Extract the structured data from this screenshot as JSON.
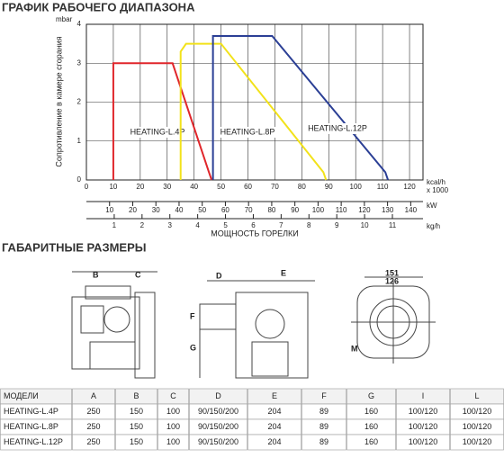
{
  "sections": {
    "chart_heading": "ГРАФИК РАБОЧЕГО ДИАПАЗОНА",
    "dims_heading": "ГАБАРИТНЫЕ РАЗМЕРЫ"
  },
  "chart_data": {
    "type": "line",
    "ylabel": "Сопротивление в камере сгорания",
    "xlabel": "МОЩНОСТЬ ГОРЕЛКИ",
    "yunit": "mbar",
    "xunit": "kcal/h",
    "xunit2": "x 1000",
    "x2unit": "kW",
    "x3unit": "kg/h",
    "xlim": [
      0,
      125
    ],
    "xticks": [
      0,
      10,
      20,
      30,
      40,
      50,
      60,
      70,
      80,
      90,
      100,
      110,
      120
    ],
    "ylim": [
      0,
      4
    ],
    "yticks": [
      0,
      1,
      2,
      3,
      4
    ],
    "x2lim": [
      0,
      145.3
    ],
    "x2ticks": [
      10,
      20,
      30,
      40,
      50,
      60,
      70,
      80,
      90,
      100,
      110,
      120,
      130,
      140
    ],
    "x3lim": [
      0,
      12.1
    ],
    "x3ticks": [
      1,
      2,
      3,
      4,
      5,
      6,
      7,
      8,
      9,
      10,
      11
    ],
    "grid": true,
    "series": [
      {
        "name": "HEATING-L.4P",
        "color": "#e0262b",
        "x": [
          10,
          10,
          32,
          45.5,
          46.5
        ],
        "values": [
          0,
          3,
          3,
          0.2,
          0
        ]
      },
      {
        "name": "HEATING-L.8P",
        "color": "#f2e21a",
        "x": [
          35,
          35,
          37,
          50,
          88,
          89
        ],
        "values": [
          0,
          3.3,
          3.5,
          3.5,
          0.2,
          0
        ]
      },
      {
        "name": "HEATING-L.12P",
        "color": "#2b3f95",
        "x": [
          47,
          47,
          69,
          111,
          112
        ],
        "values": [
          0,
          3.7,
          3.7,
          0.2,
          0
        ]
      }
    ]
  },
  "drawings": {
    "b": "B",
    "c": "C",
    "d": "D",
    "e": "E",
    "f": "F",
    "g": "G",
    "w1": "151",
    "w2": "126",
    "m": "M"
  },
  "table": {
    "header": [
      "МОДЕЛИ",
      "A",
      "B",
      "C",
      "D",
      "E",
      "F",
      "G",
      "I",
      "L"
    ],
    "rows": [
      [
        "HEATING-L.4P",
        250,
        150,
        100,
        "90/150/200",
        204,
        89,
        160,
        "100/120",
        "100/120"
      ],
      [
        "HEATING-L.8P",
        250,
        150,
        100,
        "90/150/200",
        204,
        89,
        160,
        "100/120",
        "100/120"
      ],
      [
        "HEATING-L.12P",
        250,
        150,
        100,
        "90/150/200",
        204,
        89,
        160,
        "100/120",
        "100/120"
      ]
    ]
  }
}
